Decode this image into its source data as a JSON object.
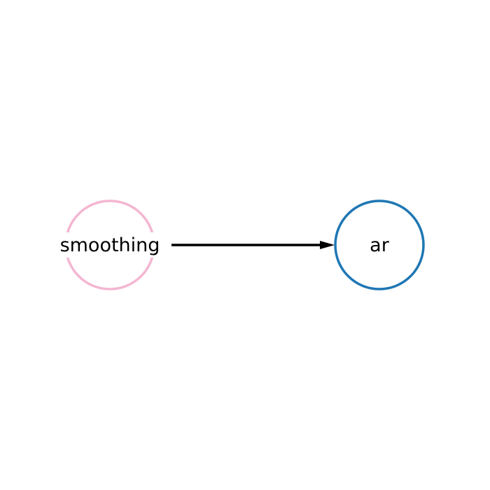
{
  "diagram": {
    "nodes": [
      {
        "id": "smoothing",
        "label": "smoothing",
        "color": "#f4b6d2"
      },
      {
        "id": "ar",
        "label": "ar",
        "color": "#1f77b4"
      }
    ],
    "edges": [
      {
        "from": "smoothing",
        "to": "ar",
        "color": "#000000",
        "directed": true
      }
    ]
  }
}
